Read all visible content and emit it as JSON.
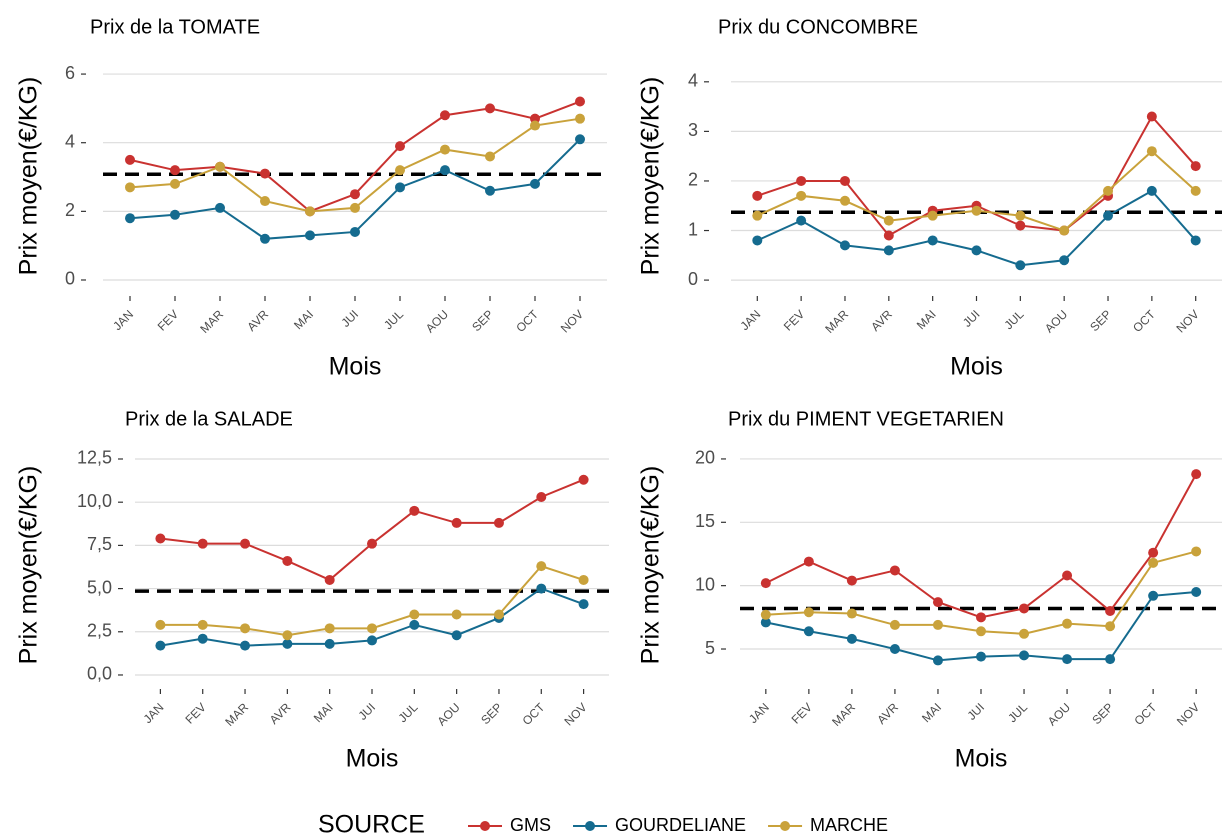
{
  "chart_data": [
    {
      "type": "line",
      "title": "Prix de la TOMATE",
      "x_label": "Mois",
      "y_label": "Prix moyen(€/KG)",
      "legend": {
        "title": "SOURCE",
        "position": "bottom"
      },
      "categories": [
        "JAN",
        "FEV",
        "MAR",
        "AVR",
        "MAI",
        "JUI",
        "JUL",
        "AOU",
        "SEP",
        "OCT",
        "NOV"
      ],
      "series": [
        {
          "name": "GMS",
          "color": "#c93230",
          "values": [
            3.5,
            3.2,
            3.3,
            3.1,
            2.0,
            2.5,
            3.9,
            4.8,
            5.0,
            4.7,
            5.2
          ]
        },
        {
          "name": "GOURDELIANE",
          "color": "#156b8f",
          "values": [
            1.8,
            1.9,
            2.1,
            1.2,
            1.3,
            1.4,
            2.7,
            3.2,
            2.6,
            2.8,
            4.1
          ]
        },
        {
          "name": "MARCHE",
          "color": "#c9a23b",
          "values": [
            2.7,
            2.8,
            3.3,
            2.3,
            2.0,
            2.1,
            3.2,
            3.8,
            3.6,
            4.5,
            4.7
          ]
        }
      ],
      "hline": 3.08,
      "ylim": [
        -0.35,
        6.41
      ],
      "yticks": [
        0,
        2,
        4,
        6
      ],
      "grid": true
    },
    {
      "type": "line",
      "title": "Prix du CONCOMBRE",
      "x_label": "Mois",
      "y_label": "Prix moyen(€/KG)",
      "categories": [
        "JAN",
        "FEV",
        "MAR",
        "AVR",
        "MAI",
        "JUI",
        "JUL",
        "AOU",
        "SEP",
        "OCT",
        "NOV"
      ],
      "series": [
        {
          "name": "GMS",
          "color": "#c93230",
          "values": [
            1.7,
            2.0,
            2.0,
            0.9,
            1.4,
            1.5,
            1.1,
            1.0,
            1.7,
            3.3,
            2.3
          ]
        },
        {
          "name": "GOURDELIANE",
          "color": "#156b8f",
          "values": [
            0.8,
            1.2,
            0.7,
            0.6,
            0.8,
            0.6,
            0.3,
            0.4,
            1.3,
            1.8,
            0.8
          ]
        },
        {
          "name": "MARCHE",
          "color": "#c9a23b",
          "values": [
            1.3,
            1.7,
            1.6,
            1.2,
            1.3,
            1.4,
            1.3,
            1.0,
            1.8,
            2.6,
            1.8
          ]
        }
      ],
      "hline": 1.37,
      "ylim": [
        -0.24,
        4.44
      ],
      "yticks": [
        0,
        1,
        2,
        3,
        4
      ],
      "grid": true
    },
    {
      "type": "line",
      "title": "Prix de la SALADE",
      "x_label": "Mois",
      "y_label": "Prix moyen(€/KG)",
      "categories": [
        "JAN",
        "FEV",
        "MAR",
        "AVR",
        "MAI",
        "JUI",
        "JUL",
        "AOU",
        "SEP",
        "OCT",
        "NOV"
      ],
      "series": [
        {
          "name": "GMS",
          "color": "#c93230",
          "values": [
            7.9,
            7.6,
            7.6,
            6.6,
            5.5,
            7.6,
            9.5,
            8.8,
            8.8,
            10.3,
            11.3
          ]
        },
        {
          "name": "GOURDELIANE",
          "color": "#156b8f",
          "values": [
            1.7,
            2.1,
            1.7,
            1.8,
            1.8,
            2.0,
            2.9,
            2.3,
            3.3,
            5.0,
            4.1
          ]
        },
        {
          "name": "MARCHE",
          "color": "#c9a23b",
          "values": [
            2.9,
            2.9,
            2.7,
            2.3,
            2.7,
            2.7,
            3.5,
            3.5,
            3.5,
            6.3,
            5.5
          ]
        }
      ],
      "hline": 4.85,
      "ylim": [
        -0.58,
        13.31
      ],
      "yticks": [
        {
          "value": 0,
          "label": "0,0"
        },
        {
          "value": 2.5,
          "label": "2,5"
        },
        {
          "value": 5,
          "label": "5,0"
        },
        {
          "value": 7.5,
          "label": "7,5"
        },
        {
          "value": 10,
          "label": "10,0"
        },
        {
          "value": 12.5,
          "label": "12,5"
        }
      ],
      "grid": true
    },
    {
      "type": "line",
      "title": "Prix du PIMENT VEGETARIEN",
      "x_label": "Mois",
      "y_label": "Prix moyen(€/KG)",
      "categories": [
        "JAN",
        "FEV",
        "MAR",
        "AVR",
        "MAI",
        "JUI",
        "JUL",
        "AOU",
        "SEP",
        "OCT",
        "NOV"
      ],
      "series": [
        {
          "name": "GMS",
          "color": "#c93230",
          "values": [
            10.2,
            11.9,
            10.4,
            11.2,
            8.7,
            7.5,
            8.2,
            10.8,
            8.0,
            12.6,
            18.8
          ]
        },
        {
          "name": "GOURDELIANE",
          "color": "#156b8f",
          "values": [
            7.1,
            6.4,
            5.8,
            5.0,
            4.1,
            4.4,
            4.5,
            4.2,
            4.2,
            9.2,
            9.5
          ]
        },
        {
          "name": "MARCHE",
          "color": "#c9a23b",
          "values": [
            7.7,
            7.9,
            7.8,
            6.9,
            6.9,
            6.4,
            6.2,
            7.0,
            6.8,
            11.8,
            12.7
          ]
        }
      ],
      "hline": 8.2,
      "ylim": [
        2.16,
        21.1
      ],
      "yticks": [
        5,
        10,
        15,
        20
      ],
      "grid": true
    }
  ]
}
